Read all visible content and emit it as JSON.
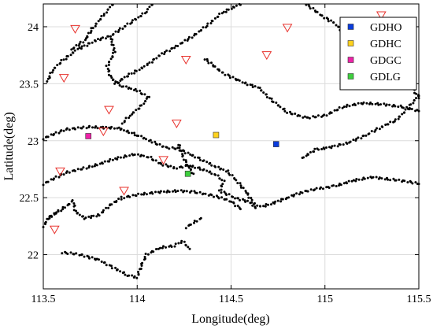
{
  "chart_data": {
    "type": "scatter",
    "title": "",
    "xlabel": "Longitude(deg)",
    "ylabel": "Latitude(deg)",
    "xlim": [
      113.5,
      115.5
    ],
    "ylim": [
      21.7,
      24.2
    ],
    "xticks": [
      113.5,
      114,
      114.5,
      115,
      115.5
    ],
    "xtick_labels": [
      "113.5",
      "114",
      "114.5",
      "115",
      "115.5"
    ],
    "yticks": [
      22,
      22.5,
      23,
      23.5,
      24
    ],
    "ytick_labels": [
      "22",
      "22.5",
      "23",
      "23.5",
      "24"
    ],
    "grid": true,
    "legend_position": "top-right",
    "stations": [
      {
        "name": "GDHO",
        "lon": 114.74,
        "lat": 22.97,
        "color": "#0a3cdc"
      },
      {
        "name": "GDHC",
        "lon": 114.42,
        "lat": 23.05,
        "color": "#ffd21e"
      },
      {
        "name": "GDGC",
        "lon": 113.74,
        "lat": 23.04,
        "color": "#ee22a8"
      },
      {
        "name": "GDLG",
        "lon": 114.27,
        "lat": 22.71,
        "color": "#3ecf3e"
      }
    ],
    "triangle_markers": {
      "color": "#e8302b",
      "points": [
        [
          113.67,
          23.98
        ],
        [
          113.61,
          23.55
        ],
        [
          113.85,
          23.27
        ],
        [
          113.82,
          23.08
        ],
        [
          113.59,
          22.73
        ],
        [
          113.56,
          22.22
        ],
        [
          113.93,
          22.56
        ],
        [
          114.14,
          22.83
        ],
        [
          114.21,
          23.15
        ],
        [
          114.26,
          23.71
        ],
        [
          114.69,
          23.75
        ],
        [
          114.8,
          23.99
        ],
        [
          115.3,
          24.1
        ]
      ]
    },
    "track_color": "#000000",
    "tracks": [
      [
        [
          113.5,
          23.02
        ],
        [
          113.62,
          23.1
        ],
        [
          113.75,
          23.12
        ],
        [
          113.9,
          23.11
        ],
        [
          114.0,
          23.05
        ],
        [
          114.08,
          22.99
        ],
        [
          114.15,
          22.94
        ],
        [
          114.22,
          22.93
        ],
        [
          114.28,
          22.88
        ],
        [
          114.35,
          22.83
        ],
        [
          114.42,
          22.77
        ],
        [
          114.48,
          22.73
        ],
        [
          114.53,
          22.65
        ],
        [
          114.58,
          22.55
        ],
        [
          114.62,
          22.45
        ],
        [
          114.66,
          22.42
        ],
        [
          114.72,
          22.45
        ],
        [
          114.8,
          22.5
        ],
        [
          114.88,
          22.55
        ],
        [
          114.97,
          22.58
        ],
        [
          115.05,
          22.6
        ],
        [
          115.15,
          22.65
        ],
        [
          115.25,
          22.68
        ],
        [
          115.35,
          22.66
        ],
        [
          115.45,
          22.64
        ],
        [
          115.5,
          22.62
        ]
      ],
      [
        [
          113.5,
          22.62
        ],
        [
          113.62,
          22.72
        ],
        [
          113.75,
          22.77
        ],
        [
          113.88,
          22.84
        ],
        [
          113.98,
          22.88
        ],
        [
          114.06,
          22.86
        ],
        [
          114.12,
          22.8
        ],
        [
          114.2,
          22.76
        ],
        [
          114.28,
          22.78
        ],
        [
          114.35,
          22.75
        ],
        [
          114.42,
          22.7
        ],
        [
          114.46,
          22.64
        ],
        [
          114.44,
          22.56
        ],
        [
          114.52,
          22.5
        ],
        [
          114.6,
          22.46
        ],
        [
          114.63,
          22.41
        ]
      ],
      [
        [
          113.52,
          22.32
        ],
        [
          113.6,
          22.4
        ],
        [
          113.66,
          22.47
        ],
        [
          113.67,
          22.38
        ],
        [
          113.72,
          22.32
        ],
        [
          113.8,
          22.35
        ],
        [
          113.85,
          22.43
        ],
        [
          113.92,
          22.5
        ],
        [
          114.02,
          22.53
        ],
        [
          114.12,
          22.55
        ],
        [
          114.22,
          22.56
        ],
        [
          114.3,
          22.55
        ],
        [
          114.4,
          22.52
        ],
        [
          114.5,
          22.47
        ],
        [
          114.55,
          22.4
        ]
      ],
      [
        [
          113.5,
          22.25
        ],
        [
          113.53,
          22.32
        ],
        [
          113.58,
          22.38
        ]
      ],
      [
        [
          113.6,
          22.02
        ],
        [
          113.7,
          22.0
        ],
        [
          113.8,
          21.95
        ],
        [
          113.88,
          21.88
        ],
        [
          113.95,
          21.82
        ],
        [
          114.0,
          21.8
        ],
        [
          114.02,
          21.9
        ],
        [
          114.05,
          22.0
        ],
        [
          114.12,
          22.06
        ],
        [
          114.2,
          22.08
        ],
        [
          114.24,
          22.12
        ],
        [
          114.28,
          22.05
        ]
      ],
      [
        [
          114.08,
          24.2
        ],
        [
          114.04,
          24.12
        ],
        [
          113.98,
          24.05
        ],
        [
          113.93,
          24.0
        ],
        [
          113.86,
          23.92
        ],
        [
          113.78,
          23.88
        ],
        [
          113.68,
          23.8
        ],
        [
          113.6,
          23.7
        ],
        [
          113.55,
          23.62
        ],
        [
          113.52,
          23.52
        ]
      ],
      [
        [
          113.87,
          24.2
        ],
        [
          113.82,
          24.1
        ],
        [
          113.76,
          23.98
        ],
        [
          113.72,
          23.88
        ],
        [
          113.65,
          23.8
        ]
      ],
      [
        [
          113.86,
          23.9
        ],
        [
          113.88,
          23.78
        ],
        [
          113.84,
          23.65
        ],
        [
          113.86,
          23.55
        ],
        [
          113.92,
          23.48
        ],
        [
          114.0,
          23.44
        ],
        [
          114.06,
          23.38
        ],
        [
          114.02,
          23.3
        ],
        [
          113.96,
          23.22
        ],
        [
          113.92,
          23.15
        ]
      ],
      [
        [
          114.55,
          24.2
        ],
        [
          114.45,
          24.12
        ],
        [
          114.38,
          24.02
        ],
        [
          114.3,
          23.92
        ],
        [
          114.2,
          23.82
        ],
        [
          114.12,
          23.75
        ],
        [
          114.05,
          23.66
        ],
        [
          113.96,
          23.58
        ],
        [
          113.88,
          23.5
        ]
      ],
      [
        [
          114.36,
          23.72
        ],
        [
          114.45,
          23.6
        ],
        [
          114.55,
          23.52
        ],
        [
          114.65,
          23.46
        ],
        [
          114.72,
          23.35
        ],
        [
          114.8,
          23.25
        ],
        [
          114.9,
          23.2
        ],
        [
          115.0,
          23.22
        ],
        [
          115.1,
          23.3
        ],
        [
          115.2,
          23.33
        ],
        [
          115.3,
          23.32
        ],
        [
          115.4,
          23.3
        ],
        [
          115.5,
          23.26
        ]
      ],
      [
        [
          115.5,
          23.4
        ],
        [
          115.44,
          23.28
        ],
        [
          115.38,
          23.18
        ],
        [
          115.3,
          23.12
        ],
        [
          115.22,
          23.05
        ],
        [
          115.12,
          22.98
        ],
        [
          115.02,
          22.94
        ],
        [
          114.95,
          22.92
        ],
        [
          114.88,
          22.85
        ]
      ],
      [
        [
          115.5,
          23.38
        ],
        [
          115.45,
          23.5
        ],
        [
          115.4,
          23.62
        ],
        [
          115.35,
          23.72
        ],
        [
          115.3,
          23.85
        ],
        [
          115.25,
          23.95
        ],
        [
          115.28,
          24.02
        ]
      ],
      [
        [
          114.9,
          24.2
        ],
        [
          114.98,
          24.1
        ],
        [
          115.05,
          24.03
        ],
        [
          115.1,
          23.95
        ],
        [
          115.18,
          23.88
        ],
        [
          115.25,
          23.82
        ],
        [
          115.3,
          23.75
        ]
      ],
      [
        [
          114.22,
          22.97
        ],
        [
          114.24,
          22.87
        ],
        [
          114.27,
          22.78
        ],
        [
          114.3,
          22.71
        ]
      ],
      [
        [
          114.26,
          22.24
        ],
        [
          114.3,
          22.28
        ],
        [
          114.34,
          22.32
        ]
      ]
    ]
  }
}
